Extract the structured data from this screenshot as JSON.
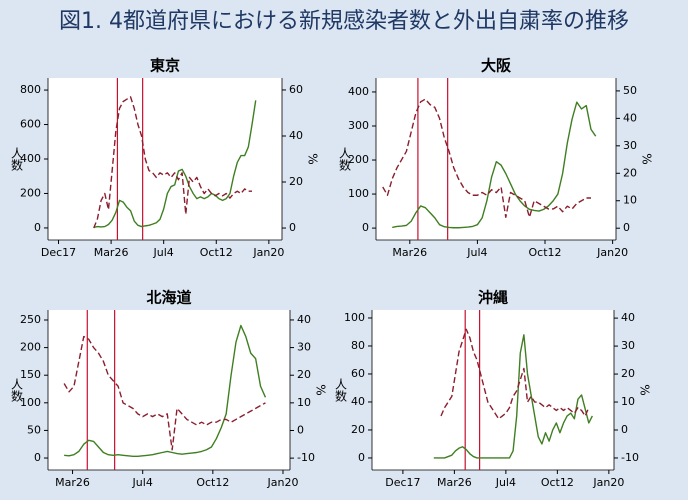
{
  "title": "図1. 4都道府県における新規感染者数と外出自粛率の推移",
  "chart_data": [
    {
      "type": "line",
      "title": "東京",
      "ylabel": "人数",
      "y2label": "%",
      "x": [
        21960,
        21967,
        21974,
        21981,
        21988,
        21995,
        22002,
        22009,
        22016,
        22023,
        22030,
        22037,
        22044,
        22051,
        22058,
        22065,
        22072,
        22079,
        22086,
        22093,
        22100,
        22107,
        22114,
        22121,
        22128,
        22135,
        22142,
        22149,
        22156,
        22163,
        22170,
        22177,
        22184,
        22191,
        22198,
        22205,
        22212,
        22219,
        22226,
        22233,
        22240,
        22247,
        22254,
        22261,
        22268,
        22275
      ],
      "xlim": [
        21880,
        22325
      ],
      "xticks": [
        {
          "value": 21900,
          "label": "Dec17"
        },
        {
          "value": 22000,
          "label": "Mar26"
        },
        {
          "value": 22100,
          "label": "Jul4"
        },
        {
          "value": 22200,
          "label": "Oct12"
        },
        {
          "value": 22300,
          "label": "Jan20"
        }
      ],
      "ylim": [
        -70,
        870
      ],
      "yticks": [
        0,
        200,
        400,
        600,
        800
      ],
      "y2lim": [
        -5.2,
        65.2
      ],
      "y2ticks": [
        0,
        20,
        40,
        60
      ],
      "vlines": [
        22012,
        22060
      ],
      "vline_color": "#c8102e",
      "series": [
        {
          "color": "#3f7f22",
          "values": [
            null,
            3,
            8,
            6,
            8,
            20,
            45,
            90,
            160,
            150,
            120,
            100,
            40,
            15,
            8,
            12,
            15,
            22,
            30,
            50,
            110,
            200,
            240,
            250,
            330,
            340,
            300,
            240,
            200,
            170,
            180,
            170,
            180,
            200,
            190,
            170,
            160,
            170,
            200,
            300,
            380,
            420,
            420,
            470,
            600,
            740
          ]
        },
        {
          "color": "#8b1e2e",
          "dashed": true,
          "axis": "y2",
          "values": [
            null,
            0,
            4,
            12,
            15,
            8,
            25,
            42,
            52,
            55,
            56,
            57,
            52,
            45,
            40,
            30,
            25,
            24,
            22,
            24,
            23,
            24,
            22,
            24,
            21,
            24,
            6,
            22,
            20,
            22,
            18,
            15,
            17,
            15,
            14,
            15,
            14,
            15,
            13,
            15,
            16,
            15,
            17,
            16,
            16,
            null
          ]
        }
      ]
    },
    {
      "type": "line",
      "title": "大阪",
      "ylabel": "人数",
      "y2label": "%",
      "x": [
        21960,
        21967,
        21974,
        21981,
        21988,
        21995,
        22002,
        22009,
        22016,
        22023,
        22030,
        22037,
        22044,
        22051,
        22058,
        22065,
        22072,
        22079,
        22086,
        22093,
        22100,
        22107,
        22114,
        22121,
        22128,
        22135,
        22142,
        22149,
        22156,
        22163,
        22170,
        22177,
        22184,
        22191,
        22198,
        22205,
        22212,
        22219,
        22226,
        22233,
        22240,
        22247,
        22254,
        22261,
        22268,
        22275
      ],
      "xlim": [
        21950,
        22305
      ],
      "xticks": [
        {
          "value": 22000,
          "label": "Mar26"
        },
        {
          "value": 22100,
          "label": "Jul4"
        },
        {
          "value": 22200,
          "label": "Oct12"
        },
        {
          "value": 22300,
          "label": "Jan20"
        }
      ],
      "ylim": [
        -35,
        441
      ],
      "yticks": [
        0,
        100,
        200,
        300,
        400
      ],
      "y2lim": [
        -4.3,
        54.7
      ],
      "y2ticks": [
        0,
        10,
        20,
        30,
        40,
        50
      ],
      "vlines": [
        22012,
        22056
      ],
      "vline_color": "#c8102e",
      "series": [
        {
          "color": "#3f7f22",
          "values": [
            null,
            null,
            2,
            5,
            6,
            8,
            20,
            45,
            65,
            60,
            45,
            30,
            10,
            4,
            2,
            1,
            1,
            2,
            3,
            5,
            10,
            30,
            80,
            150,
            195,
            185,
            160,
            130,
            100,
            80,
            65,
            55,
            52,
            50,
            55,
            65,
            80,
            100,
            160,
            250,
            320,
            370,
            350,
            360,
            290,
            270
          ]
        },
        {
          "color": "#8b1e2e",
          "dashed": true,
          "axis": "y2",
          "values": [
            15,
            12,
            18,
            22,
            25,
            28,
            35,
            42,
            46,
            47,
            45,
            44,
            40,
            33,
            28,
            22,
            18,
            15,
            13,
            12,
            12,
            13,
            12,
            14,
            13,
            15,
            4,
            13,
            12,
            11,
            10,
            4,
            10,
            9,
            8,
            7,
            7,
            8,
            6,
            8,
            7,
            9,
            10,
            11,
            11,
            null
          ]
        }
      ]
    },
    {
      "type": "line",
      "title": "北海道",
      "ylabel": "人数",
      "y2label": "%",
      "x": [
        21960,
        21967,
        21974,
        21981,
        21988,
        21995,
        22002,
        22009,
        22016,
        22023,
        22030,
        22037,
        22044,
        22051,
        22058,
        22065,
        22072,
        22079,
        22086,
        22093,
        22100,
        22107,
        22114,
        22121,
        22128,
        22135,
        22142,
        22149,
        22156,
        22163,
        22170,
        22177,
        22184,
        22191,
        22198,
        22205,
        22212,
        22219,
        22226,
        22233,
        22240,
        22247,
        22254,
        22261,
        22268,
        22275
      ],
      "xlim": [
        21965,
        22310
      ],
      "xticks": [
        {
          "value": 22000,
          "label": "Mar26"
        },
        {
          "value": 22100,
          "label": "Jul4"
        },
        {
          "value": 22200,
          "label": "Oct12"
        },
        {
          "value": 22300,
          "label": "Jan20"
        }
      ],
      "ylim": [
        -21.7,
        268.1
      ],
      "yticks": [
        0,
        50,
        100,
        150,
        200,
        250
      ],
      "y2lim": [
        -14.3,
        43.6
      ],
      "y2ticks": [
        -10,
        0,
        10,
        20,
        30,
        40
      ],
      "vlines": [
        22021,
        22060
      ],
      "vline_color": "#c8102e",
      "series": [
        {
          "color": "#3f7f22",
          "values": [
            null,
            null,
            null,
            null,
            5,
            4,
            6,
            12,
            25,
            32,
            30,
            20,
            10,
            6,
            5,
            6,
            5,
            4,
            3,
            3,
            4,
            5,
            6,
            8,
            10,
            12,
            10,
            8,
            7,
            8,
            9,
            10,
            12,
            15,
            20,
            35,
            55,
            80,
            150,
            210,
            240,
            220,
            190,
            180,
            130,
            110
          ]
        },
        {
          "color": "#8b1e2e",
          "dashed": true,
          "axis": "y2",
          "values": [
            null,
            null,
            null,
            null,
            17,
            14,
            16,
            25,
            34,
            33,
            30,
            28,
            25,
            20,
            18,
            16,
            10,
            9,
            8,
            6,
            5,
            6,
            5,
            6,
            5,
            6,
            -7,
            8,
            6,
            4,
            3,
            2,
            3,
            2,
            3,
            3,
            4,
            4,
            3,
            4,
            5,
            6,
            7,
            8,
            9,
            10
          ]
        }
      ]
    },
    {
      "type": "line",
      "title": "沖縄",
      "ylabel": "人数",
      "y2label": "%",
      "x": [
        21960,
        21967,
        21974,
        21981,
        21988,
        21995,
        22002,
        22009,
        22016,
        22023,
        22030,
        22037,
        22044,
        22051,
        22058,
        22065,
        22072,
        22079,
        22086,
        22093,
        22100,
        22107,
        22114,
        22121,
        22128,
        22135,
        22142,
        22149,
        22156,
        22163,
        22170,
        22177,
        22184,
        22191,
        22198,
        22205,
        22212,
        22219,
        22226,
        22233,
        22240,
        22247,
        22254,
        22261,
        22268,
        22275
      ],
      "xlim": [
        21840,
        22310
      ],
      "xticks": [
        {
          "value": 21900,
          "label": "Dec17"
        },
        {
          "value": 22000,
          "label": "Mar26"
        },
        {
          "value": 22100,
          "label": "Jul4"
        },
        {
          "value": 22200,
          "label": "Oct12"
        },
        {
          "value": 22300,
          "label": "Jan20"
        }
      ],
      "ylim": [
        -8.6,
        105.7
      ],
      "yticks": [
        0,
        20,
        40,
        60,
        80,
        100
      ],
      "y2lim": [
        -14.3,
        42.9
      ],
      "y2ticks": [
        -10,
        0,
        10,
        20,
        30,
        40
      ],
      "vlines": [
        22021,
        22049
      ],
      "vline_color": "#c8102e",
      "series": [
        {
          "color": "#3f7f22",
          "values": [
            0,
            0,
            0,
            0,
            1,
            2,
            5,
            7,
            8,
            6,
            3,
            1,
            0,
            0,
            0,
            0,
            0,
            0,
            0,
            0,
            0,
            0,
            5,
            30,
            75,
            88,
            60,
            45,
            30,
            15,
            10,
            18,
            12,
            20,
            25,
            18,
            25,
            30,
            32,
            28,
            42,
            45,
            35,
            25,
            30,
            null
          ]
        },
        {
          "color": "#8b1e2e",
          "dashed": true,
          "axis": "y2",
          "values": [
            null,
            null,
            5,
            8,
            10,
            12,
            20,
            28,
            32,
            36,
            33,
            28,
            25,
            20,
            15,
            10,
            8,
            6,
            4,
            5,
            6,
            8,
            12,
            14,
            18,
            22,
            10,
            12,
            10,
            10,
            9,
            8,
            9,
            8,
            7,
            8,
            7,
            8,
            7,
            6,
            8,
            7,
            5,
            8,
            null,
            null
          ]
        }
      ]
    }
  ]
}
